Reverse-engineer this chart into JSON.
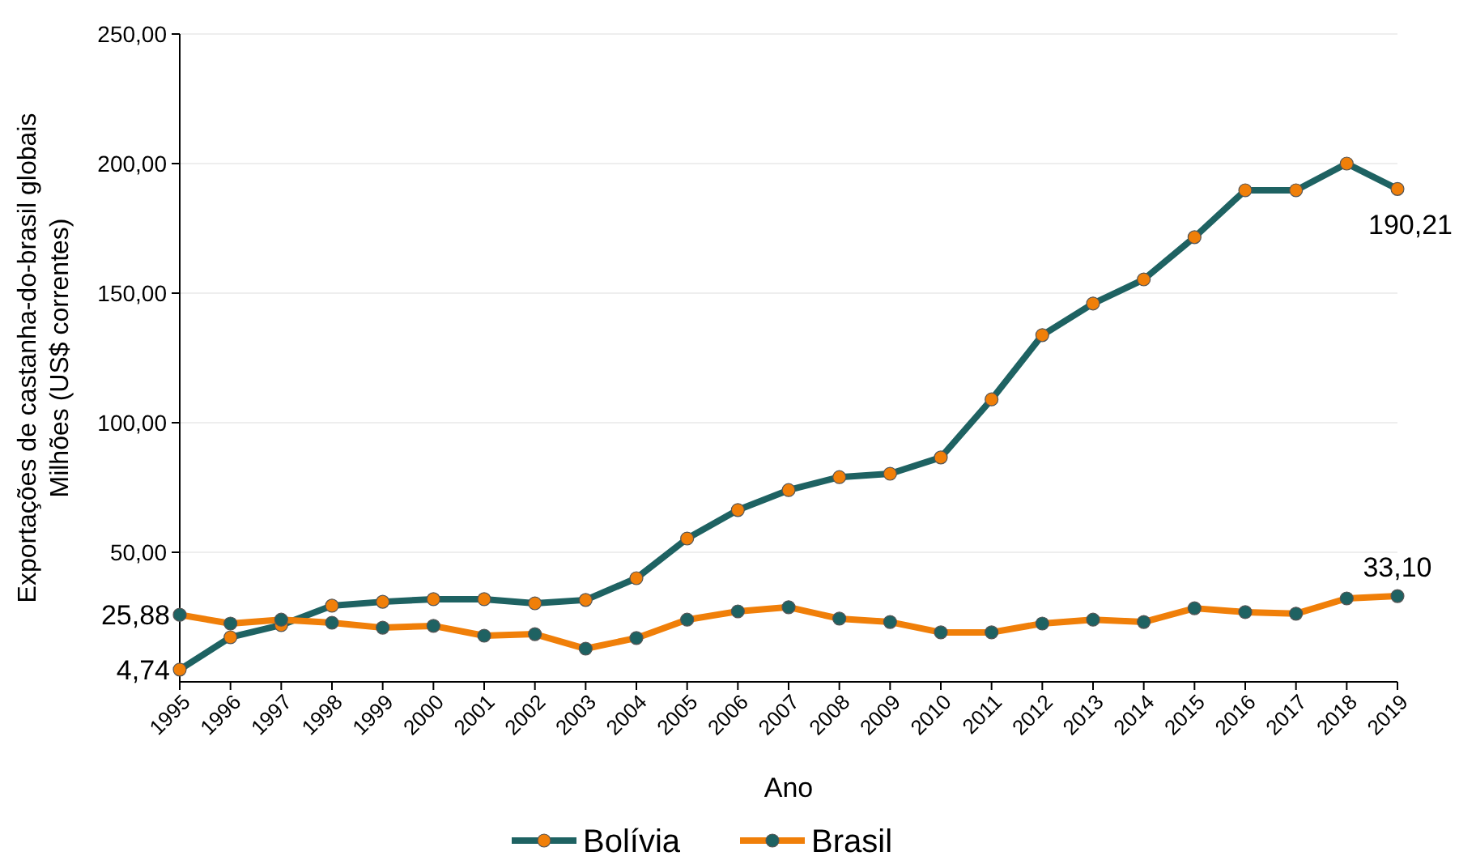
{
  "chart_data": {
    "type": "line",
    "xlabel": "Ano",
    "ylabel": "Exportações de castanha-do-brasil globais\nMilhões (US$ correntes)",
    "categories": [
      "1995",
      "1996",
      "1997",
      "1998",
      "1999",
      "2000",
      "2001",
      "2002",
      "2003",
      "2004",
      "2005",
      "2006",
      "2007",
      "2008",
      "2009",
      "2010",
      "2011",
      "2012",
      "2013",
      "2014",
      "2015",
      "2016",
      "2017",
      "2018",
      "2019"
    ],
    "series": [
      {
        "name": "Bolívia",
        "color": "#1e6262",
        "colors": [
          "#f07f09",
          "#f07f09",
          "#f07f09",
          "#f07f09",
          "#f07f09",
          "#f07f09",
          "#f07f09",
          "#f07f09",
          "#f07f09",
          "#f07f09",
          "#f07f09",
          "#f07f09",
          "#f07f09",
          "#f07f09",
          "#f07f09",
          "#f07f09",
          "#f07f09",
          "#f07f09",
          "#f07f09",
          "#f07f09",
          "#f07f09",
          "#f07f09",
          "#f07f09",
          "#f07f09",
          "#f07f09"
        ],
        "values": [
          4.74,
          17.2,
          21.9,
          29.4,
          30.9,
          31.9,
          31.9,
          30.3,
          31.6,
          40,
          55.3,
          66.3,
          74,
          79,
          80.3,
          86.6,
          109,
          133.8,
          146,
          155.3,
          171.6,
          189.7,
          189.7,
          200,
          190.21
        ]
      },
      {
        "name": "Brasil",
        "color": "#f07f09",
        "colors": [
          "#1e6262",
          "#1e6262",
          "#1e6262",
          "#1e6262",
          "#1e6262",
          "#1e6262",
          "#1e6262",
          "#1e6262",
          "#1e6262",
          "#1e6262",
          "#1e6262",
          "#1e6262",
          "#1e6262",
          "#1e6262",
          "#1e6262",
          "#1e6262",
          "#1e6262",
          "#1e6262",
          "#1e6262",
          "#1e6262",
          "#1e6262",
          "#1e6262",
          "#1e6262",
          "#1e6262",
          "#1e6262"
        ],
        "values": [
          25.88,
          22.5,
          24,
          22.8,
          20.9,
          21.6,
          17.8,
          18.4,
          12.8,
          16.9,
          24,
          27.2,
          28.8,
          24.4,
          23.1,
          19.1,
          19.1,
          22.5,
          24,
          23.1,
          28.4,
          26.9,
          26.3,
          32.2,
          33.1
        ]
      }
    ],
    "ylim": [
      0,
      250
    ],
    "yticks": [
      {
        "value": 50,
        "label": "50,00"
      },
      {
        "value": 100,
        "label": "100,00"
      },
      {
        "value": 150,
        "label": "150,00"
      },
      {
        "value": 200,
        "label": "200,00"
      },
      {
        "value": 250,
        "label": "250,00"
      }
    ],
    "grid": "y",
    "legend": "bottom",
    "marker": "circle",
    "line_style": "solid",
    "annotations": [
      {
        "text": "25,88",
        "x": "1995",
        "y": 25.88
      },
      {
        "text": "4,74",
        "x": "1995",
        "y": 4.74
      },
      {
        "text": "190,21",
        "x": "2019",
        "y": 190.21
      },
      {
        "text": "33,10",
        "x": "2019",
        "y": 33.1
      }
    ]
  }
}
